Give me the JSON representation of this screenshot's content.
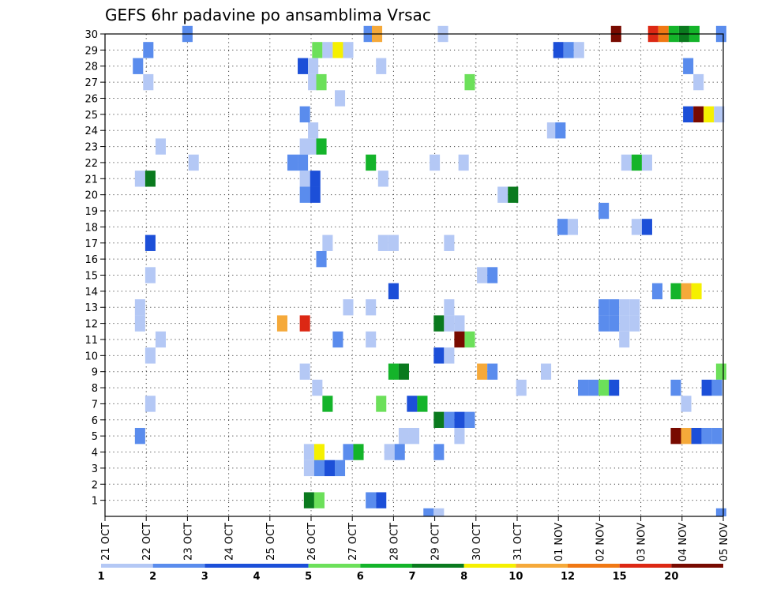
{
  "chart_data": {
    "type": "heatmap",
    "title": "GEFS 6hr padavine po ansamblima Vrsac",
    "x_ticks": [
      "21 OCT",
      "22 OCT",
      "23 OCT",
      "24 OCT",
      "25 OCT",
      "26 OCT",
      "27 OCT",
      "28 OCT",
      "29 OCT",
      "30 OCT",
      "31 OCT",
      "01 NOV",
      "02 NOV",
      "03 NOV",
      "04 NOV",
      "05 NOV"
    ],
    "y_range": [
      0,
      30
    ],
    "y_ticks": [
      1,
      2,
      3,
      4,
      5,
      6,
      7,
      8,
      9,
      10,
      11,
      12,
      13,
      14,
      15,
      16,
      17,
      18,
      19,
      20,
      21,
      22,
      23,
      24,
      25,
      26,
      27,
      28,
      29,
      30
    ],
    "grid": true,
    "grid_style": "dotted",
    "legend_position": "bottom",
    "colorbar": {
      "labels": [
        "1",
        "2",
        "3",
        "4",
        "5",
        "6",
        "7",
        "8",
        "10",
        "12",
        "15",
        "20"
      ],
      "colors": [
        "#b4c8f5",
        "#5a8ced",
        "#1c4fd8",
        "#1c4fd8",
        "#6ce05a",
        "#14b42a",
        "#0a7a1e",
        "#f5f000",
        "#f5a93a",
        "#f07814",
        "#dc2814",
        "#780a00"
      ]
    },
    "cells": [
      {
        "day": 2.0,
        "member": 30,
        "level": 2
      },
      {
        "day": 6.4,
        "member": 30,
        "level": 2
      },
      {
        "day": 6.6,
        "member": 30,
        "level": 9
      },
      {
        "day": 8.2,
        "member": 30,
        "level": 1
      },
      {
        "day": 12.4,
        "member": 30,
        "level": 12
      },
      {
        "day": 13.3,
        "member": 30,
        "level": 11
      },
      {
        "day": 13.55,
        "member": 30,
        "level": 10
      },
      {
        "day": 13.8,
        "member": 30,
        "level": 6
      },
      {
        "day": 14.05,
        "member": 30,
        "level": 7
      },
      {
        "day": 14.3,
        "member": 30,
        "level": 6
      },
      {
        "day": 14.95,
        "member": 30,
        "level": 2
      },
      {
        "day": 1.05,
        "member": 29,
        "level": 2
      },
      {
        "day": 5.15,
        "member": 29,
        "level": 5
      },
      {
        "day": 5.4,
        "member": 29,
        "level": 1
      },
      {
        "day": 5.65,
        "member": 29,
        "level": 8
      },
      {
        "day": 5.9,
        "member": 29,
        "level": 1
      },
      {
        "day": 11.0,
        "member": 29,
        "level": 3
      },
      {
        "day": 11.25,
        "member": 29,
        "level": 2
      },
      {
        "day": 11.5,
        "member": 29,
        "level": 1
      },
      {
        "day": 0.8,
        "member": 28,
        "level": 2
      },
      {
        "day": 4.8,
        "member": 28,
        "level": 3
      },
      {
        "day": 5.05,
        "member": 28,
        "level": 1
      },
      {
        "day": 6.7,
        "member": 28,
        "level": 1
      },
      {
        "day": 14.15,
        "member": 28,
        "level": 2
      },
      {
        "day": 1.05,
        "member": 27,
        "level": 1
      },
      {
        "day": 5.05,
        "member": 27,
        "level": 1
      },
      {
        "day": 5.25,
        "member": 27,
        "level": 5
      },
      {
        "day": 8.85,
        "member": 27,
        "level": 5
      },
      {
        "day": 14.4,
        "member": 27,
        "level": 1
      },
      {
        "day": 5.7,
        "member": 26,
        "level": 1
      },
      {
        "day": 4.85,
        "member": 25,
        "level": 2
      },
      {
        "day": 14.15,
        "member": 25,
        "level": 3
      },
      {
        "day": 14.4,
        "member": 25,
        "level": 12
      },
      {
        "day": 14.65,
        "member": 25,
        "level": 8
      },
      {
        "day": 14.9,
        "member": 25,
        "level": 1
      },
      {
        "day": 5.05,
        "member": 24,
        "level": 1
      },
      {
        "day": 10.85,
        "member": 24,
        "level": 1
      },
      {
        "day": 11.05,
        "member": 24,
        "level": 2
      },
      {
        "day": 1.35,
        "member": 23,
        "level": 1
      },
      {
        "day": 4.85,
        "member": 23,
        "level": 1
      },
      {
        "day": 5.05,
        "member": 23,
        "level": 1
      },
      {
        "day": 5.25,
        "member": 23,
        "level": 6
      },
      {
        "day": 2.15,
        "member": 22,
        "level": 1
      },
      {
        "day": 4.55,
        "member": 22,
        "level": 2
      },
      {
        "day": 4.8,
        "member": 22,
        "level": 2
      },
      {
        "day": 6.45,
        "member": 22,
        "level": 6
      },
      {
        "day": 8.0,
        "member": 22,
        "level": 1
      },
      {
        "day": 8.7,
        "member": 22,
        "level": 1
      },
      {
        "day": 12.65,
        "member": 22,
        "level": 1
      },
      {
        "day": 12.9,
        "member": 22,
        "level": 6
      },
      {
        "day": 13.15,
        "member": 22,
        "level": 1
      },
      {
        "day": 0.85,
        "member": 21,
        "level": 1
      },
      {
        "day": 1.1,
        "member": 21,
        "level": 7
      },
      {
        "day": 4.85,
        "member": 21,
        "level": 1
      },
      {
        "day": 5.1,
        "member": 21,
        "level": 3
      },
      {
        "day": 6.75,
        "member": 21,
        "level": 1
      },
      {
        "day": 4.85,
        "member": 20,
        "level": 2
      },
      {
        "day": 5.1,
        "member": 20,
        "level": 3
      },
      {
        "day": 9.65,
        "member": 20,
        "level": 1
      },
      {
        "day": 9.9,
        "member": 20,
        "level": 7
      },
      {
        "day": 12.1,
        "member": 19,
        "level": 2
      },
      {
        "day": 11.1,
        "member": 18,
        "level": 2
      },
      {
        "day": 11.35,
        "member": 18,
        "level": 1
      },
      {
        "day": 12.9,
        "member": 18,
        "level": 1
      },
      {
        "day": 13.15,
        "member": 18,
        "level": 3
      },
      {
        "day": 1.1,
        "member": 17,
        "level": 3
      },
      {
        "day": 5.4,
        "member": 17,
        "level": 1
      },
      {
        "day": 6.75,
        "member": 17,
        "level": 1
      },
      {
        "day": 7.0,
        "member": 17,
        "level": 1
      },
      {
        "day": 8.35,
        "member": 17,
        "level": 1
      },
      {
        "day": 5.25,
        "member": 16,
        "level": 2
      },
      {
        "day": 1.1,
        "member": 15,
        "level": 1
      },
      {
        "day": 9.15,
        "member": 15,
        "level": 1
      },
      {
        "day": 9.4,
        "member": 15,
        "level": 2
      },
      {
        "day": 7.0,
        "member": 14,
        "level": 3
      },
      {
        "day": 13.4,
        "member": 14,
        "level": 2
      },
      {
        "day": 13.85,
        "member": 14,
        "level": 6
      },
      {
        "day": 14.1,
        "member": 14,
        "level": 9
      },
      {
        "day": 14.35,
        "member": 14,
        "level": 8
      },
      {
        "day": 0.85,
        "member": 13,
        "level": 1
      },
      {
        "day": 5.9,
        "member": 13,
        "level": 1
      },
      {
        "day": 6.45,
        "member": 13,
        "level": 1
      },
      {
        "day": 8.35,
        "member": 13,
        "level": 1
      },
      {
        "day": 12.1,
        "member": 13,
        "level": 2
      },
      {
        "day": 12.35,
        "member": 13,
        "level": 2
      },
      {
        "day": 12.6,
        "member": 13,
        "level": 1
      },
      {
        "day": 12.85,
        "member": 13,
        "level": 1
      },
      {
        "day": 0.85,
        "member": 12,
        "level": 1
      },
      {
        "day": 4.3,
        "member": 12,
        "level": 9
      },
      {
        "day": 4.85,
        "member": 12,
        "level": 11
      },
      {
        "day": 8.1,
        "member": 12,
        "level": 7
      },
      {
        "day": 8.35,
        "member": 12,
        "level": 1
      },
      {
        "day": 8.6,
        "member": 12,
        "level": 1
      },
      {
        "day": 12.1,
        "member": 12,
        "level": 2
      },
      {
        "day": 12.35,
        "member": 12,
        "level": 2
      },
      {
        "day": 12.6,
        "member": 12,
        "level": 1
      },
      {
        "day": 12.85,
        "member": 12,
        "level": 1
      },
      {
        "day": 1.35,
        "member": 11,
        "level": 1
      },
      {
        "day": 5.65,
        "member": 11,
        "level": 2
      },
      {
        "day": 6.45,
        "member": 11,
        "level": 1
      },
      {
        "day": 8.6,
        "member": 11,
        "level": 12
      },
      {
        "day": 8.85,
        "member": 11,
        "level": 5
      },
      {
        "day": 12.6,
        "member": 11,
        "level": 1
      },
      {
        "day": 1.1,
        "member": 10,
        "level": 1
      },
      {
        "day": 8.1,
        "member": 10,
        "level": 3
      },
      {
        "day": 8.35,
        "member": 10,
        "level": 1
      },
      {
        "day": 4.85,
        "member": 9,
        "level": 1
      },
      {
        "day": 7.0,
        "member": 9,
        "level": 6
      },
      {
        "day": 7.25,
        "member": 9,
        "level": 7
      },
      {
        "day": 9.15,
        "member": 9,
        "level": 9
      },
      {
        "day": 9.4,
        "member": 9,
        "level": 2
      },
      {
        "day": 10.7,
        "member": 9,
        "level": 1
      },
      {
        "day": 14.95,
        "member": 9,
        "level": 5
      },
      {
        "day": 5.15,
        "member": 8,
        "level": 1
      },
      {
        "day": 10.1,
        "member": 8,
        "level": 1
      },
      {
        "day": 11.6,
        "member": 8,
        "level": 2
      },
      {
        "day": 11.85,
        "member": 8,
        "level": 2
      },
      {
        "day": 12.1,
        "member": 8,
        "level": 5
      },
      {
        "day": 12.35,
        "member": 8,
        "level": 3
      },
      {
        "day": 13.85,
        "member": 8,
        "level": 2
      },
      {
        "day": 14.6,
        "member": 8,
        "level": 3
      },
      {
        "day": 14.85,
        "member": 8,
        "level": 2
      },
      {
        "day": 1.1,
        "member": 7,
        "level": 1
      },
      {
        "day": 5.4,
        "member": 7,
        "level": 6
      },
      {
        "day": 6.7,
        "member": 7,
        "level": 5
      },
      {
        "day": 7.45,
        "member": 7,
        "level": 3
      },
      {
        "day": 7.7,
        "member": 7,
        "level": 6
      },
      {
        "day": 14.1,
        "member": 7,
        "level": 1
      },
      {
        "day": 8.1,
        "member": 6,
        "level": 7
      },
      {
        "day": 8.35,
        "member": 6,
        "level": 2
      },
      {
        "day": 8.6,
        "member": 6,
        "level": 3
      },
      {
        "day": 8.85,
        "member": 6,
        "level": 2
      },
      {
        "day": 0.85,
        "member": 5,
        "level": 2
      },
      {
        "day": 7.25,
        "member": 5,
        "level": 1
      },
      {
        "day": 7.5,
        "member": 5,
        "level": 1
      },
      {
        "day": 8.6,
        "member": 5,
        "level": 1
      },
      {
        "day": 13.85,
        "member": 5,
        "level": 12
      },
      {
        "day": 14.1,
        "member": 5,
        "level": 9
      },
      {
        "day": 14.35,
        "member": 5,
        "level": 3
      },
      {
        "day": 14.6,
        "member": 5,
        "level": 2
      },
      {
        "day": 14.85,
        "member": 5,
        "level": 2
      },
      {
        "day": 4.95,
        "member": 4,
        "level": 1
      },
      {
        "day": 5.2,
        "member": 4,
        "level": 8
      },
      {
        "day": 5.9,
        "member": 4,
        "level": 2
      },
      {
        "day": 6.15,
        "member": 4,
        "level": 6
      },
      {
        "day": 6.9,
        "member": 4,
        "level": 1
      },
      {
        "day": 7.15,
        "member": 4,
        "level": 2
      },
      {
        "day": 8.1,
        "member": 4,
        "level": 2
      },
      {
        "day": 4.95,
        "member": 3,
        "level": 1
      },
      {
        "day": 5.2,
        "member": 3,
        "level": 2
      },
      {
        "day": 5.45,
        "member": 3,
        "level": 3
      },
      {
        "day": 5.7,
        "member": 3,
        "level": 2
      },
      {
        "day": 4.95,
        "member": 1,
        "level": 7
      },
      {
        "day": 5.2,
        "member": 1,
        "level": 5
      },
      {
        "day": 6.45,
        "member": 1,
        "level": 2
      },
      {
        "day": 6.7,
        "member": 1,
        "level": 3
      },
      {
        "day": 7.85,
        "member": 0,
        "level": 2
      },
      {
        "day": 8.1,
        "member": 0,
        "level": 1
      },
      {
        "day": 14.95,
        "member": 0,
        "level": 2
      }
    ]
  }
}
